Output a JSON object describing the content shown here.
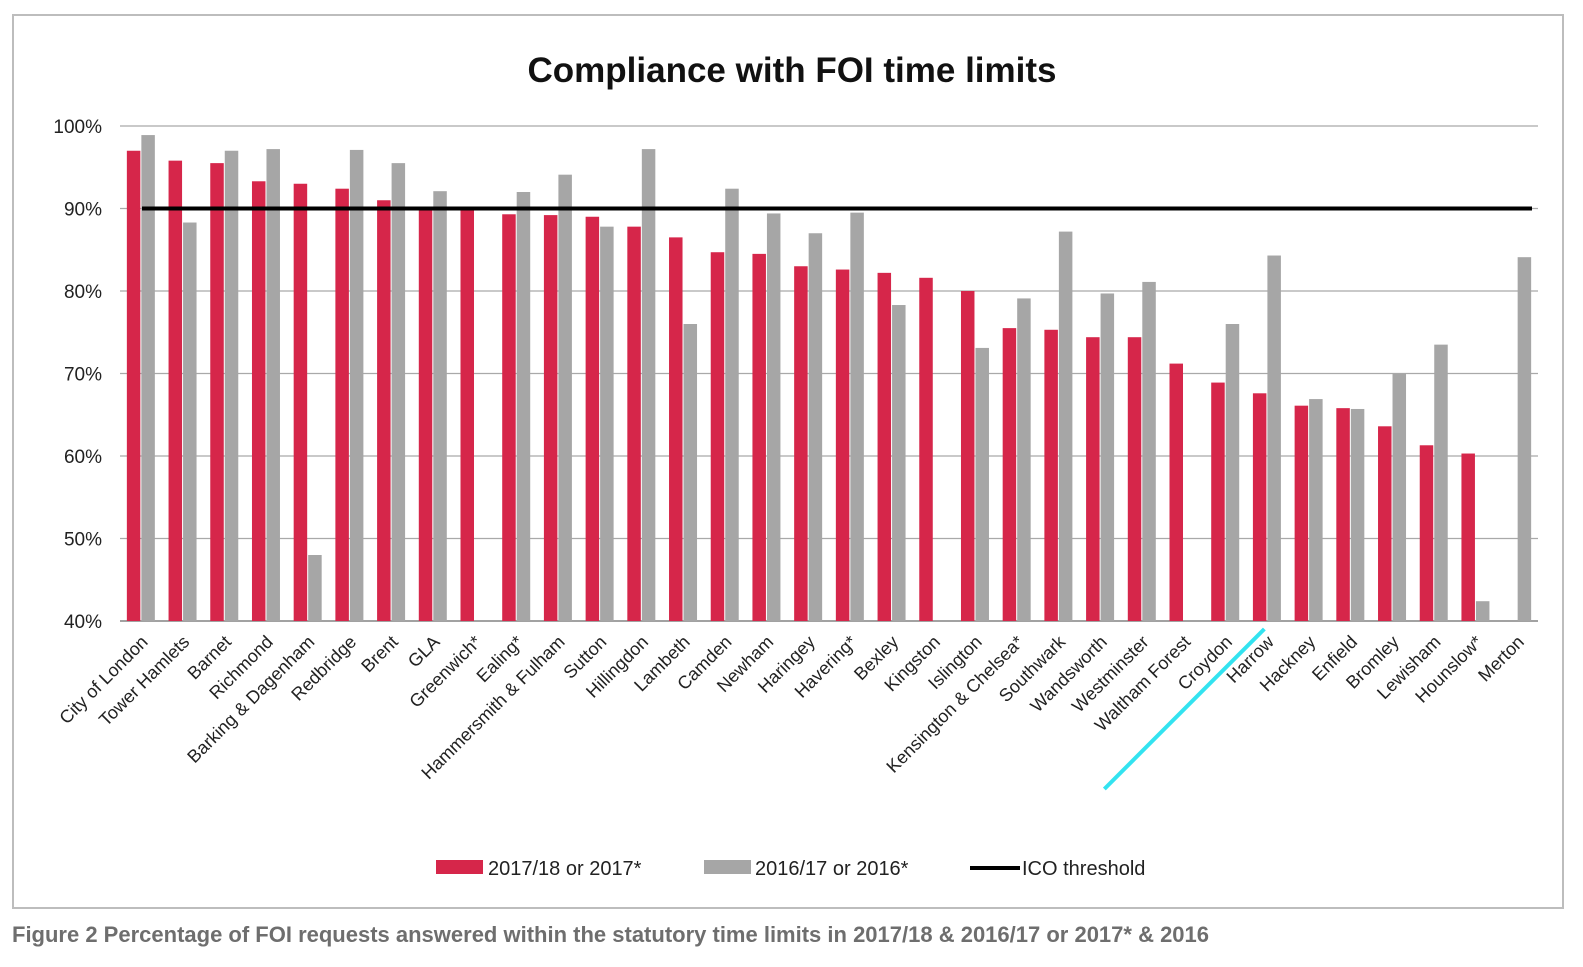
{
  "chart_data": {
    "type": "bar",
    "title": "Compliance with FOI time limits",
    "xlabel": "",
    "ylabel": "",
    "ylim": [
      40,
      100
    ],
    "yticks": [
      "40%",
      "50%",
      "60%",
      "70%",
      "80%",
      "90%",
      "100%"
    ],
    "grid": true,
    "legend_position": "bottom",
    "categories": [
      "City of London",
      "Tower Hamlets",
      "Barnet",
      "Richmond",
      "Barking & Dagenham",
      "Redbridge",
      "Brent",
      "GLA",
      "Greenwich*",
      "Ealing*",
      "Hammersmith & Fulham",
      "Sutton",
      "Hillingdon",
      "Lambeth",
      "Camden",
      "Newham",
      "Haringey",
      "Havering*",
      "Bexley",
      "Kingston",
      "Islington",
      "Kensington & Chelsea*",
      "Southwark",
      "Wandsworth",
      "Westminster",
      "Waltham Forest",
      "Croydon",
      "Harrow",
      "Hackney",
      "Enfield",
      "Bromley",
      "Lewisham",
      "Hounslow*",
      "Merton"
    ],
    "series": [
      {
        "name": "2017/18 or 2017*",
        "color": "#d6264a",
        "values": [
          97,
          95.8,
          95.5,
          93.3,
          93,
          92.4,
          91,
          90.2,
          90,
          89.3,
          89.2,
          89,
          87.8,
          86.5,
          84.7,
          84.5,
          83,
          82.6,
          82.2,
          81.6,
          80,
          75.5,
          75.3,
          74.4,
          74.4,
          71.2,
          68.9,
          67.6,
          66.1,
          65.8,
          63.6,
          61.3,
          60.3,
          null
        ]
      },
      {
        "name": "2016/17 or 2016*",
        "color": "#a6a6a6",
        "values": [
          98.9,
          88.3,
          97,
          97.2,
          48,
          97.1,
          95.5,
          92.1,
          null,
          92,
          94.1,
          87.8,
          97.2,
          76,
          92.4,
          89.4,
          87,
          89.5,
          78.3,
          null,
          73.1,
          79.1,
          87.2,
          79.7,
          81.1,
          null,
          76,
          84.3,
          66.9,
          65.7,
          70,
          73.5,
          42.4,
          84.1
        ]
      }
    ],
    "threshold": {
      "name": "ICO threshold",
      "value": 90,
      "color": "#000000"
    },
    "annotation": {
      "type": "line",
      "color": "#33e3f0",
      "between": [
        "Waltham Forest",
        "Croydon"
      ]
    }
  },
  "caption": "Figure 2 Percentage of FOI requests answered within the statutory time limits in 2017/18 & 2016/17 or 2017* & 2016"
}
